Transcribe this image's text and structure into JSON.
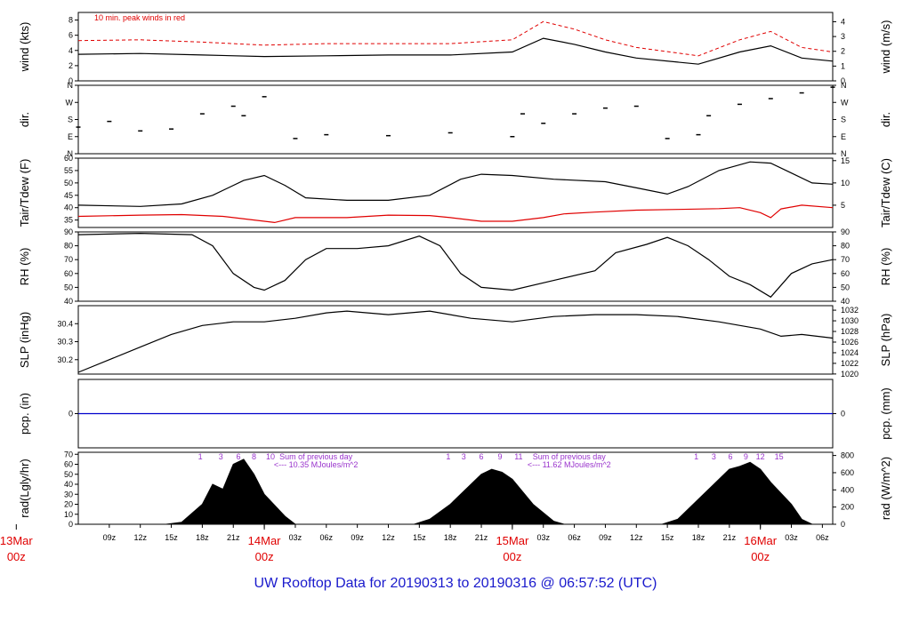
{
  "footer": {
    "title": "UW Rooftop Data for 20190313  to  20190316 @ 06:57:52  (UTC)"
  },
  "colors": {
    "red": "#e00000",
    "blue": "#1a1acc",
    "purple": "#9933cc",
    "precip_line": "#0000cc"
  },
  "x_axis": {
    "hour_ticks": [
      "09z",
      "12z",
      "15z",
      "18z",
      "21z",
      "03z",
      "06z",
      "09z",
      "12z",
      "15z",
      "18z",
      "21z",
      "03z",
      "06z",
      "09z",
      "12z",
      "15z",
      "18z",
      "21z",
      "03z",
      "06z"
    ],
    "day_labels": [
      {
        "date": "13Mar",
        "time": "00z"
      },
      {
        "date": "14Mar",
        "time": "00z"
      },
      {
        "date": "15Mar",
        "time": "00z"
      },
      {
        "date": "16Mar",
        "time": "00z"
      }
    ],
    "start_hour": 6,
    "end_hour": 79,
    "unit": "hours since 2019-03-13 00z"
  },
  "chart_data": [
    {
      "type": "line",
      "title": "10 min. peak winds in red",
      "ylabel": "wind (kts)",
      "ylabel_right": "wind (m/s)",
      "ylim": [
        0,
        9
      ],
      "yticks": [
        0,
        2,
        4,
        6,
        8
      ],
      "yticks_right": [
        0,
        1,
        2,
        3,
        4
      ],
      "series": [
        {
          "name": "wind",
          "color": "#000000",
          "points": [
            [
              6,
              3.5
            ],
            [
              12,
              3.6
            ],
            [
              18,
              3.4
            ],
            [
              24,
              3.2
            ],
            [
              30,
              3.3
            ],
            [
              36,
              3.4
            ],
            [
              42,
              3.4
            ],
            [
              48,
              3.8
            ],
            [
              51,
              5.6
            ],
            [
              54,
              4.8
            ],
            [
              57,
              3.8
            ],
            [
              60,
              3.0
            ],
            [
              66,
              2.2
            ],
            [
              70,
              3.8
            ],
            [
              73,
              4.6
            ],
            [
              76,
              3.0
            ],
            [
              79,
              2.6
            ]
          ]
        },
        {
          "name": "10 min. peak winds",
          "color": "#e00000",
          "points": [
            [
              6,
              5.3
            ],
            [
              12,
              5.4
            ],
            [
              18,
              5.1
            ],
            [
              24,
              4.7
            ],
            [
              30,
              4.9
            ],
            [
              36,
              4.9
            ],
            [
              42,
              4.9
            ],
            [
              48,
              5.4
            ],
            [
              51,
              7.8
            ],
            [
              54,
              6.8
            ],
            [
              57,
              5.4
            ],
            [
              60,
              4.4
            ],
            [
              66,
              3.3
            ],
            [
              70,
              5.4
            ],
            [
              73,
              6.5
            ],
            [
              76,
              4.4
            ],
            [
              79,
              3.8
            ]
          ]
        }
      ]
    },
    {
      "type": "scatter",
      "ylabel": "dir.",
      "ylabel_right": "dir.",
      "ylim": [
        0,
        360
      ],
      "yticks": [
        "N",
        "E",
        "S",
        "W",
        "N"
      ],
      "yticks_right": [
        "N",
        "E",
        "S",
        "W",
        "N"
      ],
      "series": [
        {
          "name": "dir",
          "color": "#000000",
          "points": [
            [
              6,
              140
            ],
            [
              9,
              170
            ],
            [
              12,
              120
            ],
            [
              15,
              130
            ],
            [
              18,
              210
            ],
            [
              21,
              250
            ],
            [
              22,
              200
            ],
            [
              24,
              300
            ],
            [
              27,
              80
            ],
            [
              30,
              100
            ],
            [
              36,
              95
            ],
            [
              42,
              110
            ],
            [
              48,
              90
            ],
            [
              49,
              210
            ],
            [
              51,
              160
            ],
            [
              54,
              210
            ],
            [
              57,
              240
            ],
            [
              60,
              250
            ],
            [
              63,
              80
            ],
            [
              66,
              100
            ],
            [
              67,
              200
            ],
            [
              70,
              260
            ],
            [
              73,
              290
            ],
            [
              76,
              320
            ],
            [
              79,
              350
            ]
          ]
        }
      ]
    },
    {
      "type": "line",
      "ylabel": "Tair/Tdew (F)",
      "ylabel_right": "Tair/Tdew (C)",
      "ylim": [
        32,
        60
      ],
      "yticks": [
        35,
        40,
        45,
        50,
        55,
        60
      ],
      "yticks_right": [
        5,
        10,
        15
      ],
      "series": [
        {
          "name": "Tair",
          "color": "#000000",
          "points": [
            [
              6,
              41
            ],
            [
              12,
              40.5
            ],
            [
              16,
              41.5
            ],
            [
              19,
              45
            ],
            [
              22,
              51
            ],
            [
              24,
              53
            ],
            [
              26,
              49
            ],
            [
              28,
              44
            ],
            [
              32,
              43
            ],
            [
              36,
              43
            ],
            [
              40,
              45
            ],
            [
              43,
              51.5
            ],
            [
              45,
              53.5
            ],
            [
              48,
              53
            ],
            [
              52,
              51.5
            ],
            [
              57,
              50.5
            ],
            [
              60,
              48
            ],
            [
              63,
              45.5
            ],
            [
              65,
              48.5
            ],
            [
              68,
              55
            ],
            [
              71,
              58.5
            ],
            [
              73,
              58
            ],
            [
              75,
              54
            ],
            [
              77,
              50
            ],
            [
              79,
              49.5
            ]
          ]
        },
        {
          "name": "Tdew",
          "color": "#e00000",
          "points": [
            [
              6,
              36.5
            ],
            [
              12,
              37
            ],
            [
              16,
              37.2
            ],
            [
              20,
              36.5
            ],
            [
              23,
              35
            ],
            [
              25,
              34
            ],
            [
              27,
              36
            ],
            [
              32,
              36
            ],
            [
              36,
              37
            ],
            [
              40,
              36.8
            ],
            [
              42,
              36
            ],
            [
              45,
              34.5
            ],
            [
              48,
              34.5
            ],
            [
              51,
              36
            ],
            [
              53,
              37.5
            ],
            [
              56,
              38.2
            ],
            [
              60,
              39
            ],
            [
              64,
              39.3
            ],
            [
              68,
              39.6
            ],
            [
              70,
              40
            ],
            [
              72,
              38
            ],
            [
              73,
              36
            ],
            [
              74,
              39.5
            ],
            [
              76,
              41
            ],
            [
              79,
              40
            ]
          ]
        }
      ]
    },
    {
      "type": "line",
      "ylabel": "RH (%)",
      "ylabel_right": "RH (%)",
      "ylim": [
        40,
        90
      ],
      "yticks": [
        40,
        50,
        60,
        70,
        80,
        90
      ],
      "yticks_right": [
        40,
        50,
        60,
        70,
        80,
        90
      ],
      "series": [
        {
          "name": "RH",
          "color": "#000000",
          "points": [
            [
              6,
              88
            ],
            [
              12,
              89
            ],
            [
              17,
              88
            ],
            [
              19,
              80
            ],
            [
              21,
              60
            ],
            [
              23,
              50
            ],
            [
              24,
              48
            ],
            [
              26,
              55
            ],
            [
              28,
              70
            ],
            [
              30,
              78
            ],
            [
              33,
              78
            ],
            [
              36,
              80
            ],
            [
              39,
              87
            ],
            [
              41,
              80
            ],
            [
              43,
              60
            ],
            [
              45,
              50
            ],
            [
              48,
              48
            ],
            [
              52,
              55
            ],
            [
              56,
              62
            ],
            [
              58,
              75
            ],
            [
              61,
              81
            ],
            [
              63,
              86
            ],
            [
              65,
              80
            ],
            [
              67,
              70
            ],
            [
              69,
              58
            ],
            [
              71,
              52
            ],
            [
              73,
              43
            ],
            [
              75,
              60
            ],
            [
              77,
              67
            ],
            [
              79,
              70
            ]
          ]
        }
      ]
    },
    {
      "type": "line",
      "ylabel": "SLP (inHg)",
      "ylabel_right": "SLP (hPa)",
      "ylim": [
        30.12,
        30.5
      ],
      "yticks": [
        30.2,
        30.3,
        30.4
      ],
      "yticks_right": [
        1020,
        1022,
        1024,
        1026,
        1028,
        1030,
        1032
      ],
      "series": [
        {
          "name": "SLP",
          "color": "#000000",
          "points": [
            [
              6,
              30.13
            ],
            [
              9,
              30.2
            ],
            [
              12,
              30.27
            ],
            [
              15,
              30.34
            ],
            [
              18,
              30.39
            ],
            [
              21,
              30.41
            ],
            [
              24,
              30.41
            ],
            [
              27,
              30.43
            ],
            [
              30,
              30.46
            ],
            [
              32,
              30.47
            ],
            [
              36,
              30.45
            ],
            [
              40,
              30.47
            ],
            [
              44,
              30.43
            ],
            [
              48,
              30.41
            ],
            [
              52,
              30.44
            ],
            [
              56,
              30.45
            ],
            [
              60,
              30.45
            ],
            [
              64,
              30.44
            ],
            [
              68,
              30.41
            ],
            [
              72,
              30.37
            ],
            [
              74,
              30.33
            ],
            [
              76,
              30.34
            ],
            [
              79,
              30.32
            ]
          ]
        }
      ]
    },
    {
      "type": "line",
      "ylabel": "pcp. (in)",
      "ylabel_right": "pcp. (mm)",
      "ylim": [
        -0.1,
        0.1
      ],
      "yticks": [
        0
      ],
      "yticks_right": [
        0
      ],
      "series": [
        {
          "name": "pcp",
          "color": "#0000cc",
          "points": [
            [
              6,
              0
            ],
            [
              79,
              0
            ]
          ]
        }
      ]
    },
    {
      "type": "area",
      "ylabel": "rad(Lgly/hr)",
      "ylabel_right": "rad (W/m^2)",
      "ylim": [
        0,
        72
      ],
      "yticks": [
        0,
        10,
        20,
        30,
        40,
        50,
        60,
        70
      ],
      "yticks_right": [
        0,
        200,
        400,
        600,
        800
      ],
      "annotations": [
        {
          "text": "Sum of previous day",
          "hour": 29
        },
        {
          "text": "<--- 10.35 MJoules/m^2",
          "hour": 29
        },
        {
          "text": "Sum of previous day",
          "hour": 53.5
        },
        {
          "text": "<--- 11.62 MJoules/m^2",
          "hour": 53.5
        }
      ],
      "solar_hour_labels": [
        {
          "text": "1",
          "hour": 17.8
        },
        {
          "text": "3",
          "hour": 19.8
        },
        {
          "text": "6",
          "hour": 21.5
        },
        {
          "text": "8",
          "hour": 23
        },
        {
          "text": "10",
          "hour": 24.6
        },
        {
          "text": "1",
          "hour": 41.8
        },
        {
          "text": "3",
          "hour": 43.3
        },
        {
          "text": "6",
          "hour": 45
        },
        {
          "text": "9",
          "hour": 46.8
        },
        {
          "text": "11",
          "hour": 48.6
        },
        {
          "text": "1",
          "hour": 65.8
        },
        {
          "text": "3",
          "hour": 67.5
        },
        {
          "text": "6",
          "hour": 69.1
        },
        {
          "text": "9",
          "hour": 70.6
        },
        {
          "text": "12",
          "hour": 72
        },
        {
          "text": "15",
          "hour": 73.8
        }
      ],
      "series": [
        {
          "name": "rad",
          "color": "#000000",
          "points": [
            [
              14.5,
              0
            ],
            [
              16,
              2
            ],
            [
              18,
              20
            ],
            [
              19,
              40
            ],
            [
              20,
              35
            ],
            [
              21,
              60
            ],
            [
              22,
              65
            ],
            [
              23,
              50
            ],
            [
              24,
              30
            ],
            [
              26,
              8
            ],
            [
              27,
              0
            ],
            [
              38.5,
              0
            ],
            [
              40,
              5
            ],
            [
              42,
              20
            ],
            [
              44,
              40
            ],
            [
              45,
              50
            ],
            [
              46,
              55
            ],
            [
              47,
              52
            ],
            [
              48,
              45
            ],
            [
              50,
              20
            ],
            [
              52,
              3
            ],
            [
              53,
              0
            ],
            [
              62.5,
              0
            ],
            [
              64,
              5
            ],
            [
              66,
              25
            ],
            [
              68,
              45
            ],
            [
              69,
              55
            ],
            [
              70,
              58
            ],
            [
              71,
              62
            ],
            [
              72,
              55
            ],
            [
              73,
              42
            ],
            [
              75,
              20
            ],
            [
              76,
              5
            ],
            [
              77,
              0
            ]
          ]
        }
      ]
    }
  ]
}
